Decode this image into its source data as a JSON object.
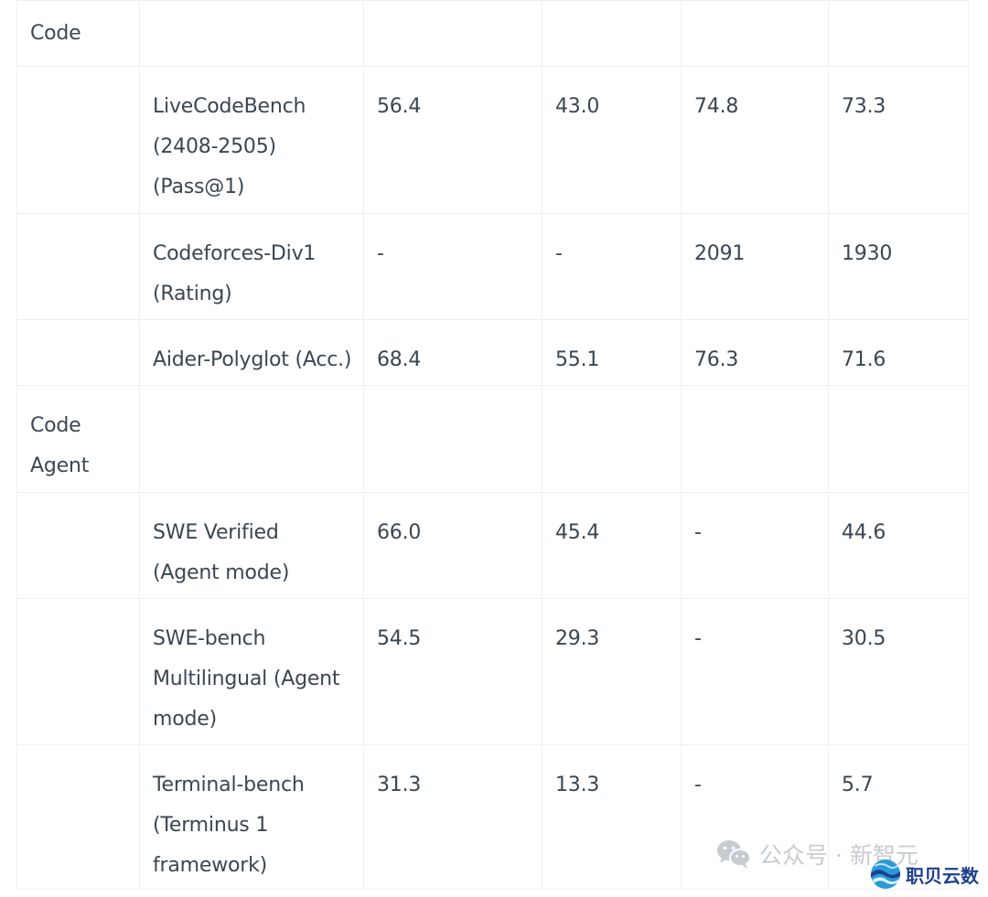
{
  "table": {
    "rows": [
      {
        "type": "category",
        "label": "Code"
      },
      {
        "type": "data",
        "metric": "LiveCodeBench (2408-2505) (Pass@1)",
        "values": [
          "56.4",
          "43.0",
          "74.8",
          "73.3"
        ]
      },
      {
        "type": "data",
        "metric": "Codeforces-Div1 (Rating)",
        "values": [
          "-",
          "-",
          "2091",
          "1930"
        ]
      },
      {
        "type": "data",
        "metric": "Aider-Polyglot (Acc.)",
        "values": [
          "68.4",
          "55.1",
          "76.3",
          "71.6"
        ]
      },
      {
        "type": "category",
        "label": "Code Agent"
      },
      {
        "type": "data",
        "metric": "SWE Verified (Agent mode)",
        "values": [
          "66.0",
          "45.4",
          "-",
          "44.6"
        ]
      },
      {
        "type": "data",
        "metric": "SWE-bench Multilingual (Agent mode)",
        "values": [
          "54.5",
          "29.3",
          "-",
          "30.5"
        ]
      },
      {
        "type": "data",
        "metric": "Terminal-bench (Terminus 1 framework)",
        "values": [
          "31.3",
          "13.3",
          "-",
          "5.7"
        ]
      }
    ]
  },
  "watermark": {
    "text": "公众号 · 新智元",
    "icon": "wechat-icon"
  },
  "logo": {
    "text": "职贝云数",
    "icon": "globe-wave-icon",
    "colors": {
      "primary": "#1d3f8f",
      "accent": "#2a9bd8"
    }
  }
}
